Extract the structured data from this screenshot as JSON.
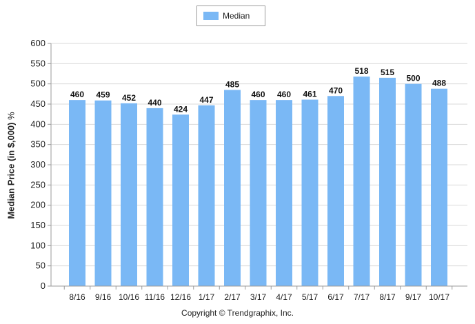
{
  "legend": {
    "label": "Median",
    "color": "#7ab8f5"
  },
  "ylabel": {
    "main": "Median Price (in $,000)",
    "unit": "%"
  },
  "copyright": "Copyright © Trendgraphix, Inc.",
  "chart_data": {
    "type": "bar",
    "categories": [
      "8/16",
      "9/16",
      "10/16",
      "11/16",
      "12/16",
      "1/17",
      "2/17",
      "3/17",
      "4/17",
      "5/17",
      "6/17",
      "7/17",
      "8/17",
      "9/17",
      "10/17"
    ],
    "series": [
      {
        "name": "Median",
        "values": [
          460,
          459,
          452,
          440,
          424,
          447,
          485,
          460,
          460,
          461,
          470,
          518,
          515,
          500,
          488
        ],
        "color": "#7ab8f5"
      }
    ],
    "ylabel": "Median Price (in $,000) %",
    "ylim": [
      0,
      600
    ],
    "yticks": [
      0,
      50,
      100,
      150,
      200,
      250,
      300,
      350,
      400,
      450,
      500,
      550,
      600
    ],
    "grid": true,
    "legend_position": "top-center",
    "data_labels": true
  }
}
